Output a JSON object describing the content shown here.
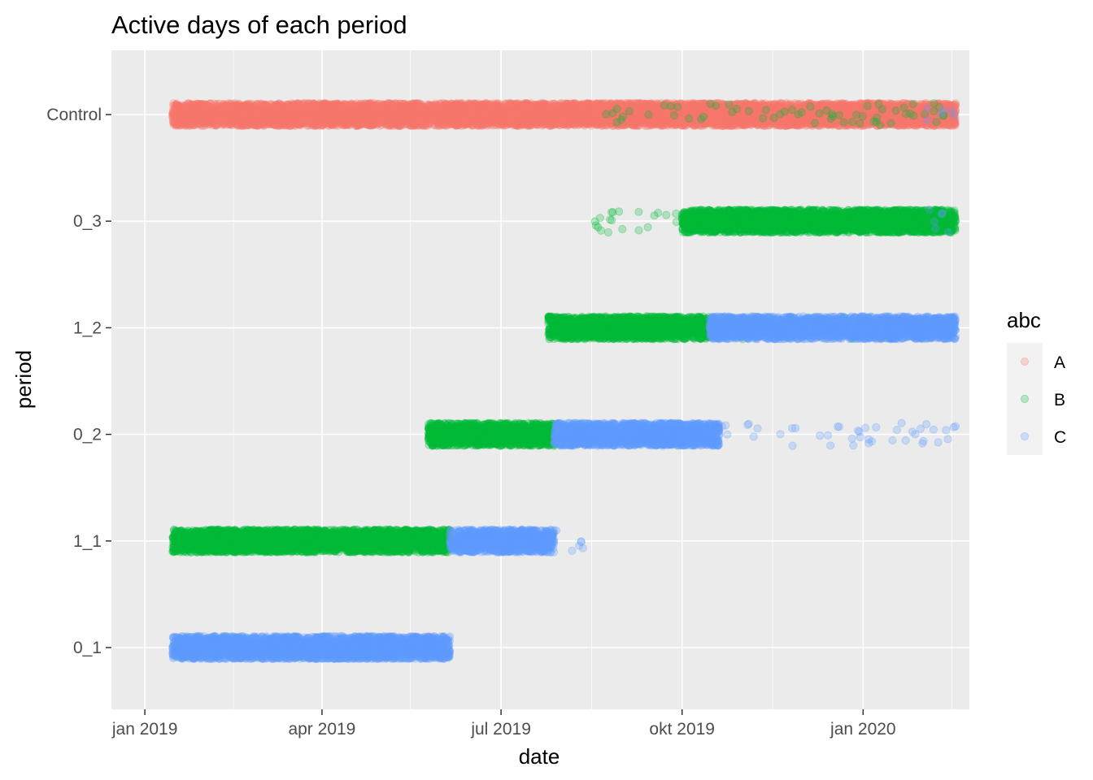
{
  "chart_data": {
    "type": "scatter",
    "title": "Active days of each period",
    "xlabel": "date",
    "ylabel": "period",
    "x_axis": {
      "kind": "date",
      "range": [
        "2018-12-15",
        "2020-02-24"
      ],
      "ticks": [
        {
          "date": "2019-01-01",
          "label": "jan 2019"
        },
        {
          "date": "2019-04-01",
          "label": "apr 2019"
        },
        {
          "date": "2019-07-01",
          "label": "jul 2019"
        },
        {
          "date": "2019-10-01",
          "label": "okt 2019"
        },
        {
          "date": "2020-01-01",
          "label": "jan 2020"
        }
      ],
      "minor_grid": [
        "2019-02-15",
        "2019-05-16",
        "2019-08-16",
        "2019-11-16",
        "2020-02-15"
      ]
    },
    "categories": [
      "Control",
      "0_3",
      "1_2",
      "0_2",
      "1_1",
      "0_1"
    ],
    "grid": true,
    "legend": {
      "title": "abc",
      "position": "right",
      "entries": [
        {
          "label": "A",
          "color": "#F8766D"
        },
        {
          "label": "B",
          "color": "#00BA38"
        },
        {
          "label": "C",
          "color": "#619CFF"
        }
      ]
    },
    "point_alpha": 0.25,
    "series": [
      {
        "name": "A",
        "color": "#F8766D",
        "segments": [
          {
            "period": "Control",
            "start": "2019-01-15",
            "end": "2020-02-17",
            "density": "dense"
          }
        ]
      },
      {
        "name": "B",
        "color": "#00BA38",
        "segments": [
          {
            "period": "Control",
            "start": "2019-08-20",
            "end": "2020-02-15",
            "density": "sparse"
          },
          {
            "period": "0_3",
            "start": "2019-08-05",
            "end": "2019-10-01",
            "density": "sparse"
          },
          {
            "period": "0_3",
            "start": "2019-10-01",
            "end": "2020-02-17",
            "density": "dense"
          },
          {
            "period": "1_2",
            "start": "2019-07-25",
            "end": "2019-10-15",
            "density": "dense"
          },
          {
            "period": "1_2",
            "start": "2019-10-15",
            "end": "2020-02-10",
            "density": "sparse"
          },
          {
            "period": "0_2",
            "start": "2019-05-25",
            "end": "2019-07-28",
            "density": "dense"
          },
          {
            "period": "0_2",
            "start": "2019-07-28",
            "end": "2019-08-15",
            "density": "sparse"
          },
          {
            "period": "1_1",
            "start": "2019-01-15",
            "end": "2019-06-05",
            "density": "dense"
          },
          {
            "period": "0_1",
            "start": "2019-01-15",
            "end": "2019-02-20",
            "density": "sparse"
          }
        ]
      },
      {
        "name": "C",
        "color": "#619CFF",
        "segments": [
          {
            "period": "Control",
            "start": "2020-02-01",
            "end": "2020-02-17",
            "density": "sparse"
          },
          {
            "period": "0_3",
            "start": "2020-02-01",
            "end": "2020-02-17",
            "density": "sparse"
          },
          {
            "period": "1_2",
            "start": "2019-10-15",
            "end": "2020-02-17",
            "density": "dense"
          },
          {
            "period": "0_2",
            "start": "2019-07-28",
            "end": "2019-10-20",
            "density": "dense"
          },
          {
            "period": "0_2",
            "start": "2019-10-20",
            "end": "2020-02-17",
            "density": "sparse"
          },
          {
            "period": "1_1",
            "start": "2019-06-05",
            "end": "2019-07-28",
            "density": "dense"
          },
          {
            "period": "1_1",
            "start": "2019-07-28",
            "end": "2019-08-13",
            "density": "sparse"
          },
          {
            "period": "0_1",
            "start": "2019-01-15",
            "end": "2019-06-05",
            "density": "dense"
          }
        ]
      }
    ]
  }
}
